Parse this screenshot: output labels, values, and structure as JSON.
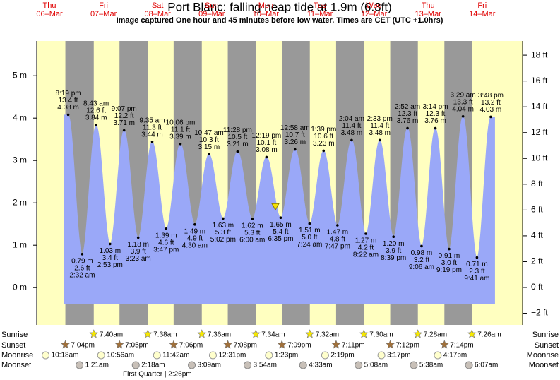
{
  "chart_data": {
    "type": "tide",
    "title": "Port Blanc: falling  neap tide at 1.9m (6.3ft)",
    "subtitle": "Image captured One hour and 45 minutes before low water. Times are CET (UTC +1.0hrs)",
    "current_level": 1.9,
    "ylim": [
      -0.88,
      5.82
    ],
    "yticks": [
      {
        "value": 0,
        "label": "0 m"
      },
      {
        "value": 1,
        "label": "1 m"
      },
      {
        "value": 2,
        "label": "2 m"
      },
      {
        "value": 3,
        "label": "3 m"
      },
      {
        "value": 4,
        "label": "4 m"
      },
      {
        "value": 5,
        "label": "5 m"
      }
    ],
    "y2lim": [
      -2.9,
      19.1
    ],
    "y2ticks": [
      {
        "value": -2,
        "label": "−2 ft"
      },
      {
        "value": 0,
        "label": "0 ft"
      },
      {
        "value": 2,
        "label": "2 ft"
      },
      {
        "value": 4,
        "label": "4 ft"
      },
      {
        "value": 6,
        "label": "6 ft"
      },
      {
        "value": 8,
        "label": "8 ft"
      },
      {
        "value": 10,
        "label": "10 ft"
      },
      {
        "value": 12,
        "label": "12 ft"
      },
      {
        "value": 14,
        "label": "14 ft"
      },
      {
        "value": 16,
        "label": "16 ft"
      },
      {
        "value": 18,
        "label": "18 ft"
      }
    ],
    "row_labels": {
      "sunrise": "Sunrise",
      "sunset": "Sunset",
      "moonrise": "Moonrise",
      "moonset": "Moonset"
    },
    "moon_phase": "First Quarter | 2:26pm",
    "days": [
      {
        "dow": "Thu",
        "date": "06–Mar",
        "sunset": "7:04pm",
        "moonrise": "10:18am",
        "tides": [
          {
            "time": "8:19 pm",
            "ft": "13.4 ft",
            "m": 4.08,
            "m_label": "4.08 m"
          }
        ]
      },
      {
        "dow": "Fri",
        "date": "07–Mar",
        "sunrise": "7:40am",
        "sunset": "7:05pm",
        "moonrise": "10:56am",
        "moonset": "1:21am",
        "tides": [
          {
            "time": "2:32 am",
            "ft": "2.6 ft",
            "m": 0.79,
            "m_label": "0.79 m"
          },
          {
            "time": "8:43 am",
            "ft": "12.6 ft",
            "m": 3.84,
            "m_label": "3.84 m"
          },
          {
            "time": "2:53 pm",
            "ft": "3.4 ft",
            "m": 1.03,
            "m_label": "1.03 m"
          },
          {
            "time": "9:07 pm",
            "ft": "12.2 ft",
            "m": 3.71,
            "m_label": "3.71 m"
          }
        ]
      },
      {
        "dow": "Sat",
        "date": "08–Mar",
        "sunrise": "7:38am",
        "sunset": "7:06pm",
        "moonrise": "11:42am",
        "moonset": "2:18am",
        "tides": [
          {
            "time": "3:23 am",
            "ft": "3.9 ft",
            "m": 1.18,
            "m_label": "1.18 m"
          },
          {
            "time": "9:35 am",
            "ft": "11.3 ft",
            "m": 3.44,
            "m_label": "3.44 m"
          },
          {
            "time": "3:47 pm",
            "ft": "4.6 ft",
            "m": 1.39,
            "m_label": "1.39 m"
          },
          {
            "time": "10:06 pm",
            "ft": "11.1 ft",
            "m": 3.39,
            "m_label": "3.39 m"
          }
        ]
      },
      {
        "dow": "Sun",
        "date": "09–Mar",
        "sunrise": "7:36am",
        "sunset": "7:08pm",
        "moonrise": "12:31pm",
        "moonset": "3:09am",
        "tides": [
          {
            "time": "4:30 am",
            "ft": "4.9 ft",
            "m": 1.49,
            "m_label": "1.49 m"
          },
          {
            "time": "10:47 am",
            "ft": "10.3 ft",
            "m": 3.15,
            "m_label": "3.15 m"
          },
          {
            "time": "5:02 pm",
            "ft": "5.3 ft",
            "m": 1.63,
            "m_label": "1.63 m"
          },
          {
            "time": "11:28 pm",
            "ft": "10.5 ft",
            "m": 3.21,
            "m_label": "3.21 m"
          }
        ]
      },
      {
        "dow": "Mon",
        "date": "10–Mar",
        "sunrise": "7:34am",
        "sunset": "7:09pm",
        "moonrise": "1:23pm",
        "moonset": "3:54am",
        "tides": [
          {
            "time": "6:00 am",
            "ft": "5.3 ft",
            "m": 1.62,
            "m_label": "1.62 m"
          },
          {
            "time": "12:19 pm",
            "ft": "10.1 ft",
            "m": 3.08,
            "m_label": "3.08 m"
          },
          {
            "time": "6:35 pm",
            "ft": "5.4 ft",
            "m": 1.65,
            "m_label": "1.65 m"
          }
        ]
      },
      {
        "dow": "Tue",
        "date": "11–Mar",
        "sunrise": "7:32am",
        "sunset": "7:11pm",
        "moonrise": "2:19pm",
        "moonset": "4:33am",
        "tides": [
          {
            "time": "12:58 am",
            "ft": "10.7 ft",
            "m": 3.26,
            "m_label": "3.26 m"
          },
          {
            "time": "7:24 am",
            "ft": "5.0 ft",
            "m": 1.51,
            "m_label": "1.51 m"
          },
          {
            "time": "1:39 pm",
            "ft": "10.6 ft",
            "m": 3.23,
            "m_label": "3.23 m"
          },
          {
            "time": "7:47 pm",
            "ft": "4.8 ft",
            "m": 1.47,
            "m_label": "1.47 m"
          }
        ]
      },
      {
        "dow": "Wed",
        "date": "12–Mar",
        "sunrise": "7:30am",
        "sunset": "7:12pm",
        "moonrise": "3:17pm",
        "moonset": "5:08am",
        "tides": [
          {
            "time": "2:04 am",
            "ft": "11.4 ft",
            "m": 3.48,
            "m_label": "3.48 m"
          },
          {
            "time": "8:22 am",
            "ft": "4.2 ft",
            "m": 1.27,
            "m_label": "1.27 m"
          },
          {
            "time": "2:33 pm",
            "ft": "11.4 ft",
            "m": 3.48,
            "m_label": "3.48 m"
          },
          {
            "time": "8:39 pm",
            "ft": "3.9 ft",
            "m": 1.2,
            "m_label": "1.20 m"
          }
        ]
      },
      {
        "dow": "Thu",
        "date": "13–Mar",
        "sunrise": "7:28am",
        "sunset": "7:14pm",
        "moonrise": "4:17pm",
        "moonset": "5:38am",
        "tides": [
          {
            "time": "2:52 am",
            "ft": "12.3 ft",
            "m": 3.76,
            "m_label": "3.76 m"
          },
          {
            "time": "9:06 am",
            "ft": "3.2 ft",
            "m": 0.98,
            "m_label": "0.98 m"
          },
          {
            "time": "3:14 pm",
            "ft": "12.3 ft",
            "m": 3.76,
            "m_label": "3.76 m"
          },
          {
            "time": "9:19 pm",
            "ft": "3.0 ft",
            "m": 0.91,
            "m_label": "0.91 m"
          }
        ]
      },
      {
        "dow": "Fri",
        "date": "14–Mar",
        "sunrise": "7:26am",
        "moonset": "6:07am",
        "tides": [
          {
            "time": "3:29 am",
            "ft": "13.3 ft",
            "m": 4.04,
            "m_label": "4.04 m"
          },
          {
            "time": "9:41 am",
            "ft": "2.3 ft",
            "m": 0.71,
            "m_label": "0.71 m"
          },
          {
            "time": "3:48 pm",
            "ft": "13.2 ft",
            "m": 4.03,
            "m_label": "4.03 m"
          }
        ]
      }
    ]
  }
}
